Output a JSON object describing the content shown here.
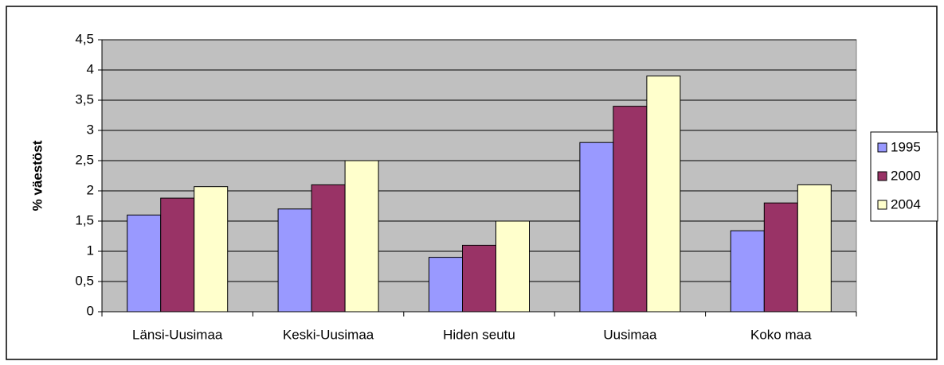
{
  "chart_data": {
    "type": "bar",
    "y_label": "% väestöst",
    "categories": [
      "Länsi-Uusimaa",
      "Keski-Uusimaa",
      "Hiden seutu",
      "Uusimaa",
      "Koko maa"
    ],
    "series": [
      {
        "name": "1995",
        "color": "#9999ff",
        "values": [
          1.6,
          1.7,
          0.9,
          2.8,
          1.34
        ]
      },
      {
        "name": "2000",
        "color": "#993366",
        "values": [
          1.88,
          2.1,
          1.1,
          3.4,
          1.8
        ]
      },
      {
        "name": "2004",
        "color": "#ffffcc",
        "values": [
          2.07,
          2.5,
          1.5,
          3.9,
          2.1
        ]
      }
    ],
    "ylim": [
      0,
      4.5
    ],
    "yticks": [
      0,
      {
        "value": 0.5,
        "label": "0,5"
      },
      1,
      {
        "value": 1.5,
        "label": "1,5"
      },
      2,
      {
        "value": 2.5,
        "label": "2,5"
      },
      3,
      {
        "value": 3.5,
        "label": "3,5"
      },
      4,
      {
        "value": 4.5,
        "label": "4,5"
      }
    ],
    "grid": true,
    "plot_background": "#c0c0c0",
    "legend": "right"
  }
}
